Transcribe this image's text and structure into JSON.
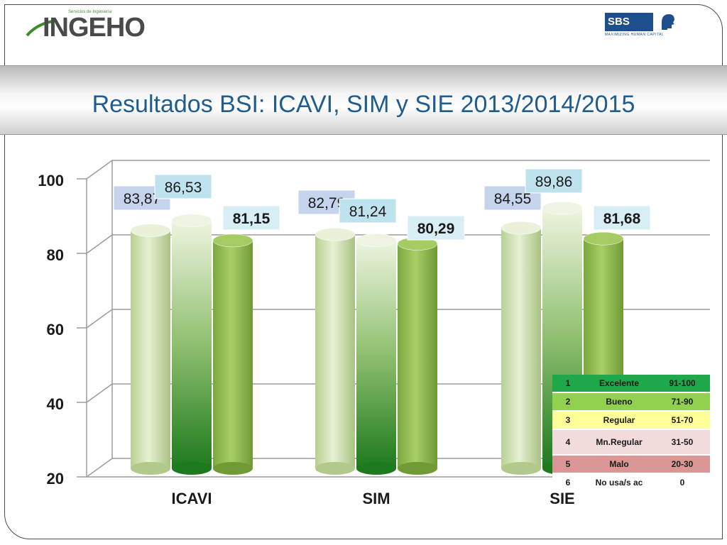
{
  "header": {
    "logo_left_text": "INGEHO",
    "logo_left_sub": "Servicios de Ingeniería",
    "logo_right_text": "SBS",
    "logo_right_tag": "MAXIMIZING HUMAN CAPITAL",
    "title": "Resultados BSI: ICAVI, SIM y SIE  2013/2014/2015"
  },
  "chart_data": {
    "type": "bar",
    "categories": [
      "ICAVI",
      "SIM",
      "SIE"
    ],
    "series": [
      {
        "values": [
          83.87,
          82.79,
          84.55
        ],
        "labels": [
          "83,87",
          "82,79",
          "84,55"
        ]
      },
      {
        "values": [
          86.53,
          81.24,
          89.86
        ],
        "labels": [
          "86,53",
          "81,24",
          "89,86"
        ]
      },
      {
        "values": [
          81.15,
          80.29,
          81.68
        ],
        "labels": [
          "81,15",
          "80,29",
          "81,68"
        ]
      }
    ],
    "ylim": [
      20,
      100
    ],
    "yticks": [
      "20",
      "40",
      "60",
      "80",
      "100"
    ],
    "grid": true,
    "colors": {
      "s0": "#c9dfa6",
      "s1": "#3f8f2e",
      "s2": "#8fbe4e",
      "label_s0_bg": "#c5d3ec",
      "label_s1_bg": "#bfe3ee",
      "label_s2_bg": "#d7eef4"
    }
  },
  "legend": {
    "rows": [
      {
        "num": "1",
        "name": "Excelente",
        "range": "91-100",
        "color": "#1fa84a"
      },
      {
        "num": "2",
        "name": "Bueno",
        "range": "71-90",
        "color": "#92d050"
      },
      {
        "num": "3",
        "name": "Regular",
        "range": "51-70",
        "color": "#ffff99"
      },
      {
        "num": "4",
        "name": "Mn.Regular",
        "range": "31-50",
        "color": "#f2dcdb"
      },
      {
        "num": "5",
        "name": "Malo",
        "range": "20-30",
        "color": "#da9694"
      },
      {
        "num": "6",
        "name": "No usa/s ac",
        "range": "0",
        "color": "#ffffff"
      }
    ]
  }
}
